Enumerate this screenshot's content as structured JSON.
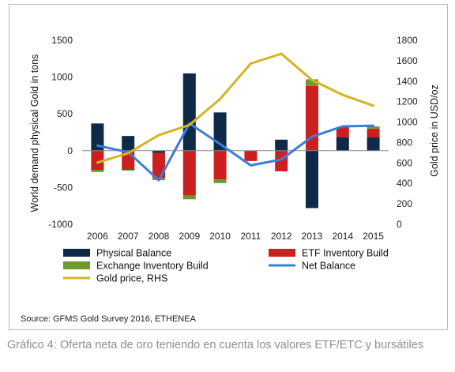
{
  "chart_data": {
    "type": "bar",
    "categories": [
      "2006",
      "2007",
      "2008",
      "2009",
      "2010",
      "2011",
      "2012",
      "2013",
      "2014",
      "2015"
    ],
    "ylabel": "World demand physical Gold in tons",
    "y2label": "Gold price in USD/oz",
    "ylim": [
      -1000,
      1500
    ],
    "y2lim": [
      0,
      1800
    ],
    "yticks": [
      "1500",
      "1000",
      "500",
      "0",
      "-500",
      "-1000"
    ],
    "y2ticks": [
      "1800",
      "1600",
      "1400",
      "1200",
      "1000",
      "800",
      "600",
      "400",
      "200",
      "0"
    ],
    "series": [
      {
        "name": "Physical Balance",
        "kind": "stacked-bar",
        "color": "#0e2a47",
        "values": [
          370,
          200,
          -30,
          1050,
          520,
          -10,
          150,
          -780,
          180,
          180
        ]
      },
      {
        "name": "ETF Inventory Build",
        "kind": "stacked-bar",
        "color": "#cc1f1f",
        "values": [
          -260,
          -260,
          -340,
          -610,
          -390,
          -130,
          -280,
          880,
          140,
          120
        ]
      },
      {
        "name": "Exchange Inventory Build",
        "kind": "stacked-bar",
        "color": "#6f9a2b",
        "values": [
          -30,
          -10,
          -30,
          -50,
          -50,
          0,
          0,
          90,
          0,
          30
        ]
      },
      {
        "name": "Net Balance",
        "kind": "line",
        "color": "#3b7dd8",
        "values": [
          70,
          -20,
          -400,
          370,
          90,
          -200,
          -120,
          190,
          330,
          340
        ]
      },
      {
        "name": "Gold price, RHS",
        "kind": "line",
        "axis": "right",
        "color": "#d4b420",
        "values": [
          604,
          695,
          872,
          972,
          1225,
          1572,
          1669,
          1411,
          1266,
          1160
        ]
      }
    ],
    "legend_position": "bottom",
    "grid": false
  },
  "source": "Source: GFMS Gold Survey 2016, ETHENEA",
  "caption": "Gráfico 4: Oferta neta de oro teniendo en cuenta los valores ETF/ETC y bursátiles"
}
